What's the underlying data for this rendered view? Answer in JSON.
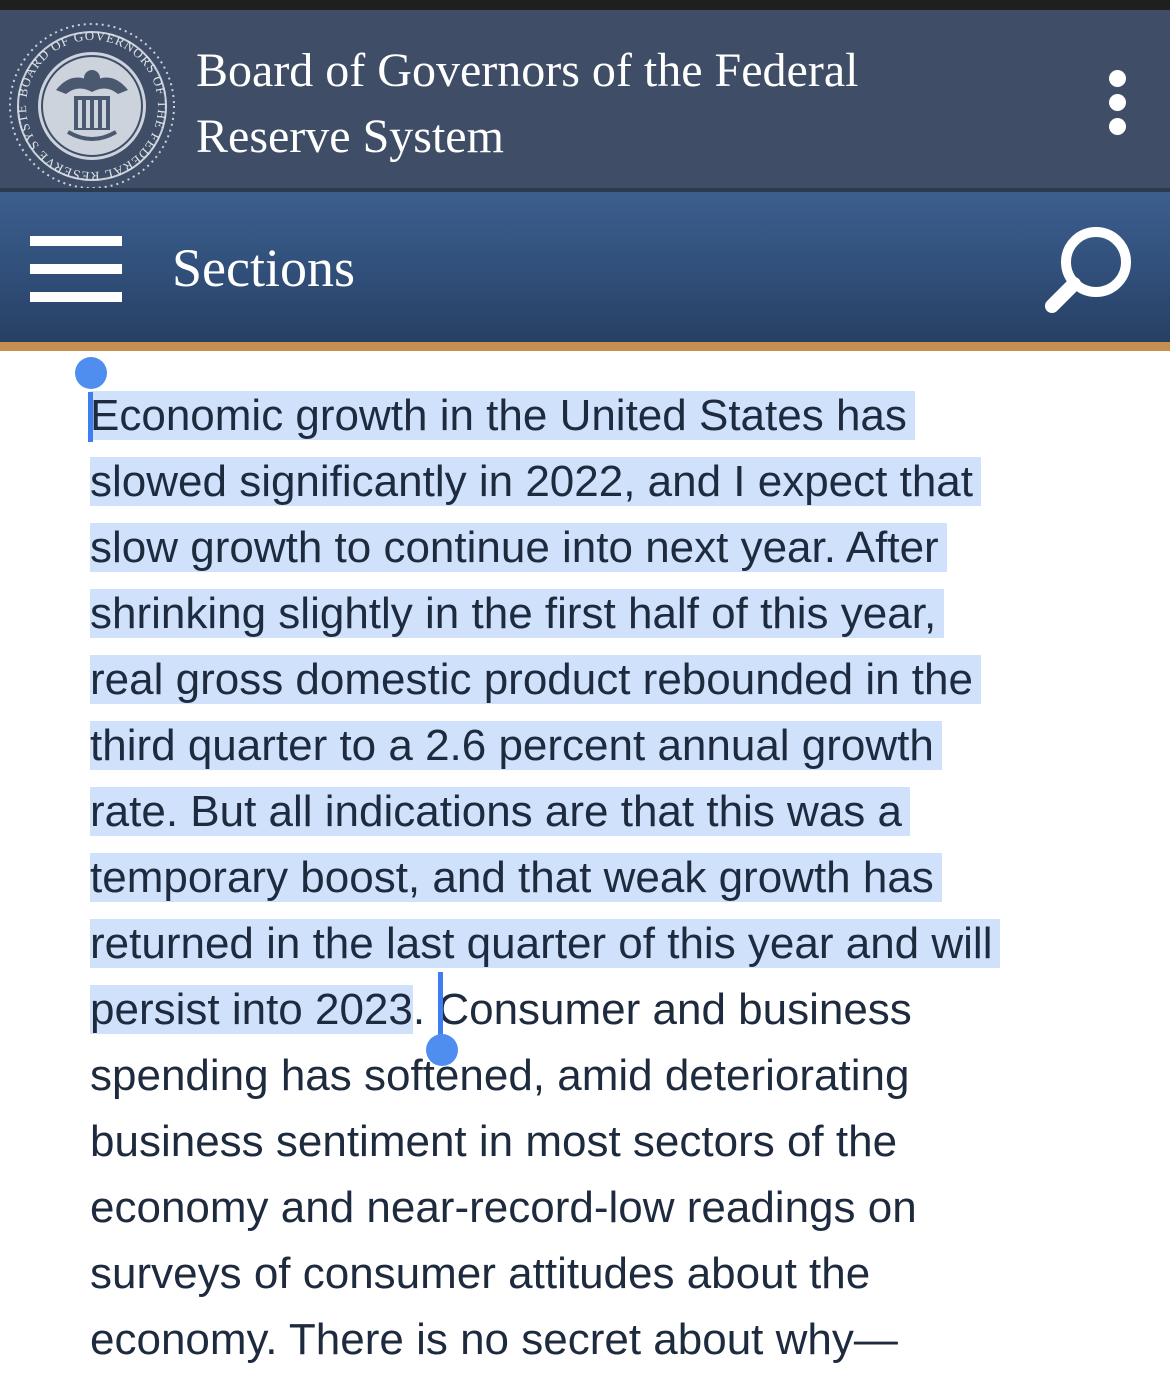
{
  "header": {
    "title_line1": "Board of Governors of the Federal",
    "title_line2": "Reserve System",
    "seal_icon": "federal-reserve-seal-icon",
    "more_icon": "vertical-ellipsis-icon"
  },
  "nav": {
    "menu_icon": "hamburger-menu-icon",
    "sections_label": "Sections",
    "search_icon": "search-icon"
  },
  "content": {
    "lines": [
      {
        "selected": "Economic growth in the United States has",
        "rest": ""
      },
      {
        "selected": "slowed significantly in 2022, and I expect that",
        "rest": ""
      },
      {
        "selected": "slow growth to continue into next year. After",
        "rest": ""
      },
      {
        "selected": "shrinking slightly in the first half of this year,",
        "rest": ""
      },
      {
        "selected": "real gross domestic product rebounded in the",
        "rest": ""
      },
      {
        "selected": "third quarter to a 2.6 percent annual growth",
        "rest": ""
      },
      {
        "selected": "rate. But all indications are that this was a",
        "rest": ""
      },
      {
        "selected": "temporary boost, and that weak growth has",
        "rest": ""
      },
      {
        "selected": "returned in the last quarter of this year and will",
        "rest": ""
      },
      {
        "selected": "persist into 2023",
        "rest": ". Consumer and business"
      },
      {
        "selected": "",
        "rest": "spending has softened, amid deteriorating"
      },
      {
        "selected": "",
        "rest": "business sentiment in most sectors of the"
      },
      {
        "selected": "",
        "rest": "economy and near-record-low readings on"
      },
      {
        "selected": "",
        "rest": "surveys of consumer attitudes about the"
      },
      {
        "selected": "",
        "rest": "economy. There is no secret about why—"
      }
    ]
  },
  "colors": {
    "header_bg": "#3f4e66",
    "nav_bg": "#2f4d77",
    "accent_gold": "#c4904f",
    "selection_bg": "#cfe1fb",
    "selection_handle": "#4f8def",
    "text": "#1e2b3e"
  }
}
